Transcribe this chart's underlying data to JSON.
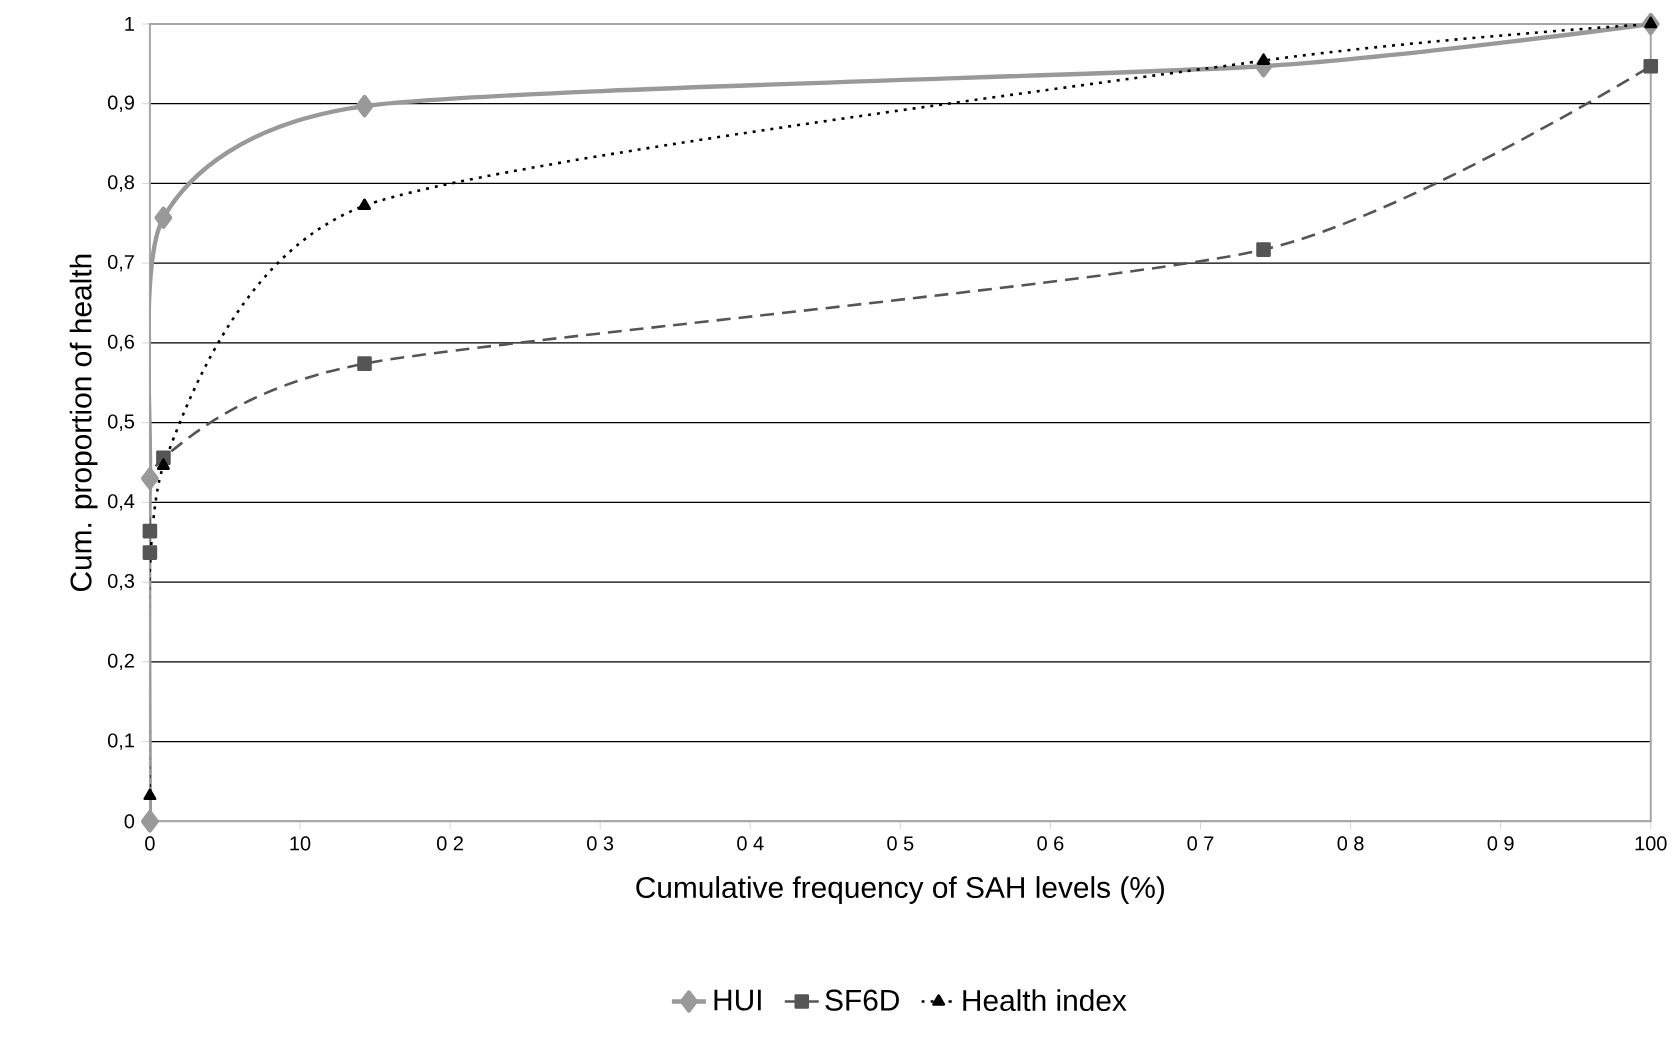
{
  "chart_data": {
    "type": "line",
    "xlabel": "Cumulative frequency of SAH levels (%)",
    "ylabel": "Cum. proportion of health",
    "xlim": [
      0,
      100
    ],
    "ylim": [
      0,
      1
    ],
    "xticks": [
      0,
      10,
      {
        "value": 20,
        "label": "0 2"
      },
      {
        "value": 30,
        "label": "0 3"
      },
      {
        "value": 40,
        "label": "0 4"
      },
      {
        "value": 50,
        "label": "0 5"
      },
      {
        "value": 60,
        "label": "0 6"
      },
      {
        "value": 70,
        "label": "0 7"
      },
      {
        "value": 80,
        "label": "0 8"
      },
      {
        "value": 90,
        "label": "0 9"
      },
      100
    ],
    "yticks": [
      0,
      {
        "value": 0.1,
        "label": "0,1"
      },
      {
        "value": 0.2,
        "label": "0,2"
      },
      {
        "value": 0.3,
        "label": "0,3"
      },
      {
        "value": 0.4,
        "label": "0,4"
      },
      {
        "value": 0.5,
        "label": "0,5"
      },
      {
        "value": 0.6,
        "label": "0,6"
      },
      {
        "value": 0.7,
        "label": "0,7"
      },
      {
        "value": 0.8,
        "label": "0,8"
      },
      {
        "value": 0.9,
        "label": "0,9"
      },
      1
    ],
    "grid": "y",
    "legend": "bottom",
    "series": [
      {
        "name": "HUI",
        "color": "#999999",
        "line_style": "solid",
        "marker": "diamond",
        "x": [
          0,
          0,
          0.9,
          14.3,
          74.2,
          100
        ],
        "values": [
          0,
          0.43,
          0.757,
          0.897,
          0.947,
          1
        ]
      },
      {
        "name": "SF6D",
        "color": "#555555",
        "line_style": "dashed",
        "marker": "square",
        "x": [
          0,
          0,
          0.9,
          14.3,
          74.2,
          100
        ],
        "values": [
          0.337,
          0.364,
          0.456,
          0.574,
          0.717,
          0.947
        ]
      },
      {
        "name": "Health index",
        "color": "#000000",
        "line_style": "dotted",
        "marker": "triangle",
        "x": [
          0,
          0.9,
          14.3,
          74.2,
          100
        ],
        "values": [
          0.032,
          0.446,
          0.772,
          0.954,
          1
        ]
      }
    ]
  }
}
